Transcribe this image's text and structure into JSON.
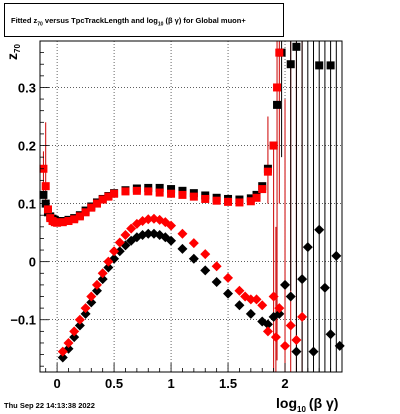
{
  "chart_data": {
    "type": "scatter",
    "title": {
      "prefix": "Fitted  z",
      "prefix_sub": "70",
      "middle": "  versus TpcTrackLength and log",
      "middle_sub": "10",
      "suffix": "(β  γ) for Global muon+"
    },
    "ylabel": {
      "main": "z",
      "sub": "70"
    },
    "xlabel": {
      "main": "log",
      "sub": "10",
      "suffix": "(β γ)"
    },
    "xlim": [
      -0.15,
      2.5
    ],
    "ylim": [
      -0.19,
      0.38
    ],
    "xticks": [
      {
        "v": 0,
        "label": "0"
      },
      {
        "v": 0.5,
        "label": "0.5"
      },
      {
        "v": 1,
        "label": "1"
      },
      {
        "v": 1.5,
        "label": "1.5"
      },
      {
        "v": 2,
        "label": "2"
      }
    ],
    "yticks": [
      {
        "v": -0.1,
        "label": "−0.1"
      },
      {
        "v": 0,
        "label": "0"
      },
      {
        "v": 0.1,
        "label": "0.1"
      },
      {
        "v": 0.2,
        "label": "0.2"
      },
      {
        "v": 0.3,
        "label": "0.3"
      }
    ],
    "grid": true,
    "series": [
      {
        "marker": "square",
        "color": "#000000",
        "points": [
          [
            -0.12,
            0.115
          ],
          [
            -0.1,
            0.1
          ],
          [
            -0.08,
            0.085
          ],
          [
            -0.06,
            0.078
          ],
          [
            -0.04,
            0.074
          ],
          [
            -0.02,
            0.072
          ],
          [
            0.0,
            0.07
          ],
          [
            0.05,
            0.07
          ],
          [
            0.1,
            0.072
          ],
          [
            0.15,
            0.075
          ],
          [
            0.2,
            0.08
          ],
          [
            0.25,
            0.088
          ],
          [
            0.3,
            0.095
          ],
          [
            0.35,
            0.102
          ],
          [
            0.4,
            0.108
          ],
          [
            0.45,
            0.113
          ],
          [
            0.5,
            0.118
          ],
          [
            0.6,
            0.123
          ],
          [
            0.7,
            0.126
          ],
          [
            0.8,
            0.127
          ],
          [
            0.9,
            0.127
          ],
          [
            1.0,
            0.125
          ],
          [
            1.1,
            0.122
          ],
          [
            1.2,
            0.118
          ],
          [
            1.3,
            0.114
          ],
          [
            1.4,
            0.11
          ],
          [
            1.5,
            0.108
          ],
          [
            1.6,
            0.107
          ],
          [
            1.7,
            0.109
          ],
          [
            1.75,
            0.115
          ],
          [
            1.8,
            0.13
          ],
          [
            1.85,
            0.16
          ],
          [
            1.9,
            0.2
          ],
          [
            1.93,
            0.27
          ],
          [
            1.97,
            0.36
          ],
          [
            2.05,
            0.34
          ],
          [
            2.1,
            0.37
          ],
          [
            2.3,
            0.338
          ],
          [
            2.4,
            0.338
          ]
        ]
      },
      {
        "marker": "square",
        "color": "#ff0000",
        "points": [
          [
            -0.12,
            0.16
          ],
          [
            -0.1,
            0.13
          ],
          [
            -0.08,
            0.09
          ],
          [
            -0.06,
            0.075
          ],
          [
            -0.04,
            0.07
          ],
          [
            -0.02,
            0.068
          ],
          [
            0.0,
            0.067
          ],
          [
            0.05,
            0.068
          ],
          [
            0.1,
            0.07
          ],
          [
            0.15,
            0.073
          ],
          [
            0.2,
            0.078
          ],
          [
            0.25,
            0.085
          ],
          [
            0.3,
            0.093
          ],
          [
            0.35,
            0.1
          ],
          [
            0.4,
            0.107
          ],
          [
            0.45,
            0.112
          ],
          [
            0.5,
            0.117
          ],
          [
            0.6,
            0.121
          ],
          [
            0.7,
            0.122
          ],
          [
            0.8,
            0.121
          ],
          [
            0.9,
            0.119
          ],
          [
            1.0,
            0.117
          ],
          [
            1.1,
            0.115
          ],
          [
            1.2,
            0.112
          ],
          [
            1.3,
            0.108
          ],
          [
            1.4,
            0.105
          ],
          [
            1.5,
            0.103
          ],
          [
            1.6,
            0.102
          ],
          [
            1.7,
            0.104
          ],
          [
            1.75,
            0.11
          ],
          [
            1.8,
            0.125
          ],
          [
            1.85,
            0.155
          ],
          [
            1.9,
            0.2
          ],
          [
            1.93,
            0.3
          ],
          [
            1.95,
            0.36
          ]
        ]
      },
      {
        "marker": "diamond",
        "color": "#000000",
        "points": [
          [
            0.05,
            -0.165
          ],
          [
            0.1,
            -0.15
          ],
          [
            0.15,
            -0.13
          ],
          [
            0.2,
            -0.11
          ],
          [
            0.25,
            -0.09
          ],
          [
            0.3,
            -0.07
          ],
          [
            0.35,
            -0.05
          ],
          [
            0.4,
            -0.03
          ],
          [
            0.45,
            -0.01
          ],
          [
            0.5,
            0.005
          ],
          [
            0.55,
            0.018
          ],
          [
            0.6,
            0.028
          ],
          [
            0.65,
            0.036
          ],
          [
            0.7,
            0.042
          ],
          [
            0.75,
            0.046
          ],
          [
            0.8,
            0.048
          ],
          [
            0.85,
            0.048
          ],
          [
            0.9,
            0.046
          ],
          [
            0.95,
            0.042
          ],
          [
            1.0,
            0.036
          ],
          [
            1.1,
            0.022
          ],
          [
            1.2,
            0.005
          ],
          [
            1.3,
            -0.015
          ],
          [
            1.4,
            -0.035
          ],
          [
            1.5,
            -0.055
          ],
          [
            1.6,
            -0.075
          ],
          [
            1.7,
            -0.09
          ],
          [
            1.8,
            -0.103
          ],
          [
            1.85,
            -0.108
          ],
          [
            1.9,
            -0.095
          ],
          [
            1.95,
            -0.09
          ],
          [
            2.0,
            -0.04
          ],
          [
            2.05,
            -0.06
          ],
          [
            2.1,
            -0.155
          ],
          [
            2.15,
            -0.03
          ],
          [
            2.2,
            0.025
          ],
          [
            2.25,
            -0.155
          ],
          [
            2.3,
            0.055
          ],
          [
            2.35,
            -0.045
          ],
          [
            2.4,
            -0.125
          ],
          [
            2.45,
            0.01
          ],
          [
            2.48,
            -0.145
          ]
        ]
      },
      {
        "marker": "diamond",
        "color": "#ff0000",
        "points": [
          [
            0.05,
            -0.155
          ],
          [
            0.1,
            -0.14
          ],
          [
            0.15,
            -0.12
          ],
          [
            0.2,
            -0.1
          ],
          [
            0.25,
            -0.08
          ],
          [
            0.3,
            -0.06
          ],
          [
            0.35,
            -0.04
          ],
          [
            0.4,
            -0.02
          ],
          [
            0.45,
            0.0
          ],
          [
            0.5,
            0.018
          ],
          [
            0.55,
            0.033
          ],
          [
            0.6,
            0.046
          ],
          [
            0.65,
            0.057
          ],
          [
            0.7,
            0.065
          ],
          [
            0.75,
            0.07
          ],
          [
            0.8,
            0.073
          ],
          [
            0.85,
            0.074
          ],
          [
            0.9,
            0.072
          ],
          [
            0.95,
            0.068
          ],
          [
            1.0,
            0.062
          ],
          [
            1.1,
            0.048
          ],
          [
            1.2,
            0.032
          ],
          [
            1.3,
            0.013
          ],
          [
            1.4,
            -0.008
          ],
          [
            1.5,
            -0.028
          ],
          [
            1.6,
            -0.05
          ],
          [
            1.65,
            -0.06
          ],
          [
            1.7,
            -0.065
          ],
          [
            1.75,
            -0.065
          ],
          [
            1.8,
            -0.075
          ],
          [
            1.85,
            -0.12
          ],
          [
            1.9,
            -0.06
          ],
          [
            1.92,
            -0.13
          ],
          [
            1.95,
            -0.08
          ],
          [
            2.0,
            -0.145
          ],
          [
            2.05,
            -0.11
          ],
          [
            2.1,
            -0.135
          ],
          [
            2.15,
            -0.095
          ]
        ]
      }
    ],
    "error_bars": [
      {
        "x": -0.12,
        "y": 0.16,
        "lo": 0.11,
        "hi": 0.19,
        "color": "#cc0000"
      },
      {
        "x": -0.1,
        "y": 0.13,
        "lo": 0.09,
        "hi": 0.24,
        "color": "#cc0000"
      },
      {
        "x": 1.85,
        "y": 0.155,
        "lo": 0.1,
        "hi": 0.25,
        "color": "#cc0000"
      },
      {
        "x": 1.93,
        "y": 0.3,
        "lo": -0.17,
        "hi": 0.38,
        "color": "#cc0000"
      },
      {
        "x": 1.95,
        "y": 0.36,
        "lo": 0.1,
        "hi": 0.38,
        "color": "#cc0000"
      },
      {
        "x": 1.9,
        "y": -0.06,
        "lo": -0.19,
        "hi": 0.2,
        "color": "#cc0000"
      },
      {
        "x": 1.92,
        "y": -0.13,
        "lo": -0.19,
        "hi": 0.06,
        "color": "#cc0000"
      },
      {
        "x": 2.0,
        "y": -0.145,
        "lo": -0.19,
        "hi": 0.28,
        "color": "#cc0000"
      },
      {
        "x": 2.05,
        "y": -0.11,
        "lo": -0.19,
        "hi": 0.38,
        "color": "#cc0000"
      },
      {
        "x": 2.1,
        "y": -0.135,
        "lo": -0.19,
        "hi": 0.38,
        "color": "#cc0000"
      },
      {
        "x": 2.15,
        "y": -0.095,
        "lo": -0.19,
        "hi": 0.38,
        "color": "#cc0000"
      },
      {
        "x": 1.97,
        "y": 0.36,
        "lo": 0.18,
        "hi": 0.38,
        "color": "#000000"
      },
      {
        "x": 2.05,
        "y": 0.34,
        "lo": -0.05,
        "hi": 0.38,
        "color": "#000000"
      },
      {
        "x": 2.1,
        "y": 0.37,
        "lo": -0.19,
        "hi": 0.38,
        "color": "#000000"
      },
      {
        "x": 2.15,
        "y": -0.03,
        "lo": -0.19,
        "hi": 0.38,
        "color": "#000000"
      },
      {
        "x": 2.2,
        "y": 0.025,
        "lo": -0.19,
        "hi": 0.38,
        "color": "#000000"
      },
      {
        "x": 2.25,
        "y": -0.155,
        "lo": -0.19,
        "hi": 0.38,
        "color": "#000000"
      },
      {
        "x": 2.3,
        "y": 0.055,
        "lo": -0.19,
        "hi": 0.38,
        "color": "#000000"
      },
      {
        "x": 2.35,
        "y": -0.045,
        "lo": -0.19,
        "hi": 0.38,
        "color": "#000000"
      },
      {
        "x": 2.4,
        "y": -0.125,
        "lo": -0.19,
        "hi": 0.38,
        "color": "#000000"
      },
      {
        "x": 2.45,
        "y": 0.01,
        "lo": -0.19,
        "hi": 0.38,
        "color": "#000000"
      }
    ]
  },
  "footer": {
    "datestamp": "Thu Sep 22 14:13:38 2022"
  }
}
